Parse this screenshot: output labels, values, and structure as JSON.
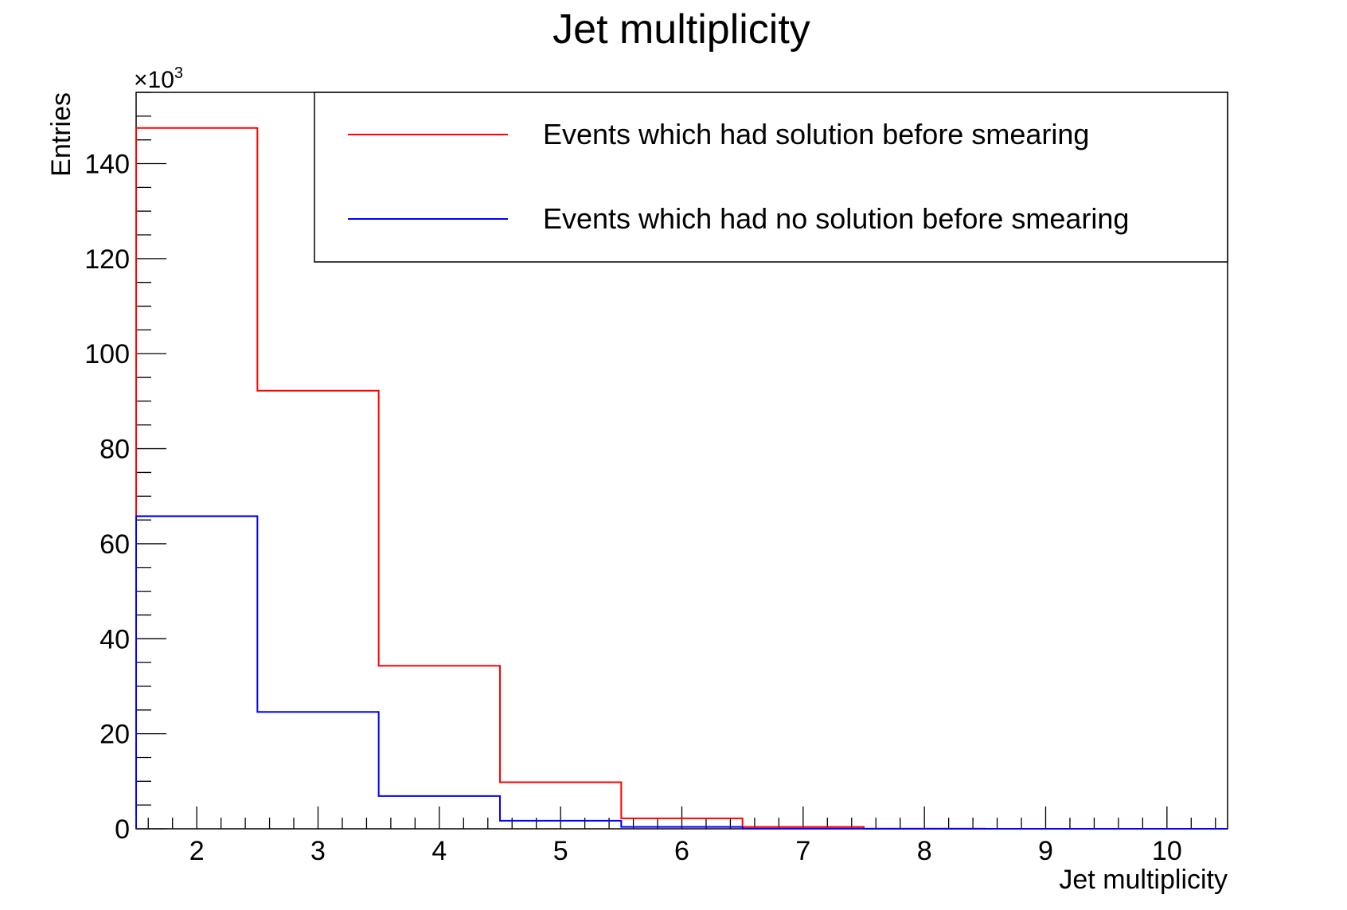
{
  "chart_data": {
    "type": "step",
    "title": "Jet multiplicity",
    "xlabel": "Jet multiplicity",
    "ylabel": "Entries",
    "y_multiplier": "×10",
    "y_multiplier_exp": "3",
    "xlim": [
      1.5,
      10.5
    ],
    "ylim": [
      0,
      155
    ],
    "x_ticks": [
      2,
      3,
      4,
      5,
      6,
      7,
      8,
      9,
      10
    ],
    "y_ticks": [
      0,
      20,
      40,
      60,
      80,
      100,
      120,
      140
    ],
    "bin_edges": [
      1.5,
      2.5,
      3.5,
      4.5,
      5.5,
      6.5,
      7.5,
      8.5,
      9.5,
      10.5
    ],
    "series": [
      {
        "name": "Events which had solution before smearing",
        "color": "#ff0000",
        "values": [
          147.5,
          92.2,
          34.3,
          9.8,
          2.2,
          0.4,
          0.05,
          0,
          0
        ]
      },
      {
        "name": "Events which had no solution before smearing",
        "color": "#0000ff",
        "values": [
          65.8,
          24.6,
          6.9,
          1.7,
          0.4,
          0.05,
          0,
          0,
          0
        ]
      }
    ],
    "grid": false,
    "legend_position": "top-right"
  }
}
